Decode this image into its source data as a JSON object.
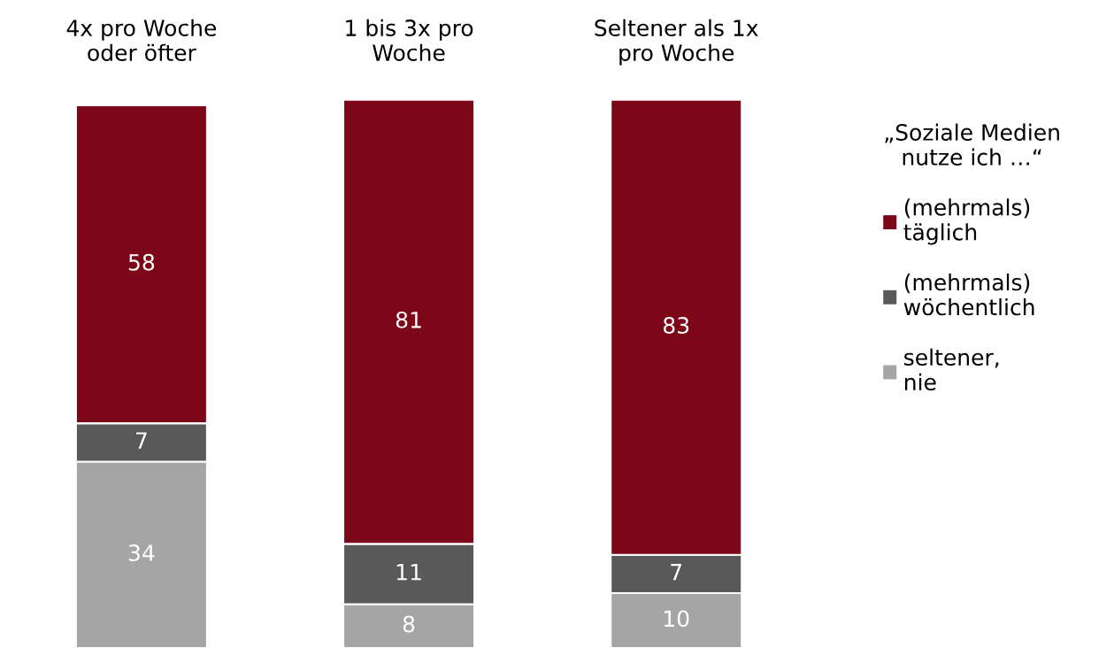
{
  "chart_data": {
    "type": "bar",
    "stacked": true,
    "data_labels": true,
    "categories": [
      "4x pro Woche\noder öfter",
      "1 bis 3x pro\nWoche",
      "Seltener als 1x\npro Woche"
    ],
    "legend_title": "„Soziale Medien\nnutze ich …“",
    "legend": "right",
    "series": [
      {
        "name": "seltener,\nnie",
        "color": "#a5a5a5",
        "values": [
          34,
          8,
          10
        ]
      },
      {
        "name": "(mehrmals)\nwöchentlich",
        "color": "#595959",
        "values": [
          7,
          11,
          7
        ]
      },
      {
        "name": "(mehrmals)\ntäglich",
        "color": "#7b0719",
        "values": [
          58,
          81,
          83
        ]
      }
    ]
  }
}
